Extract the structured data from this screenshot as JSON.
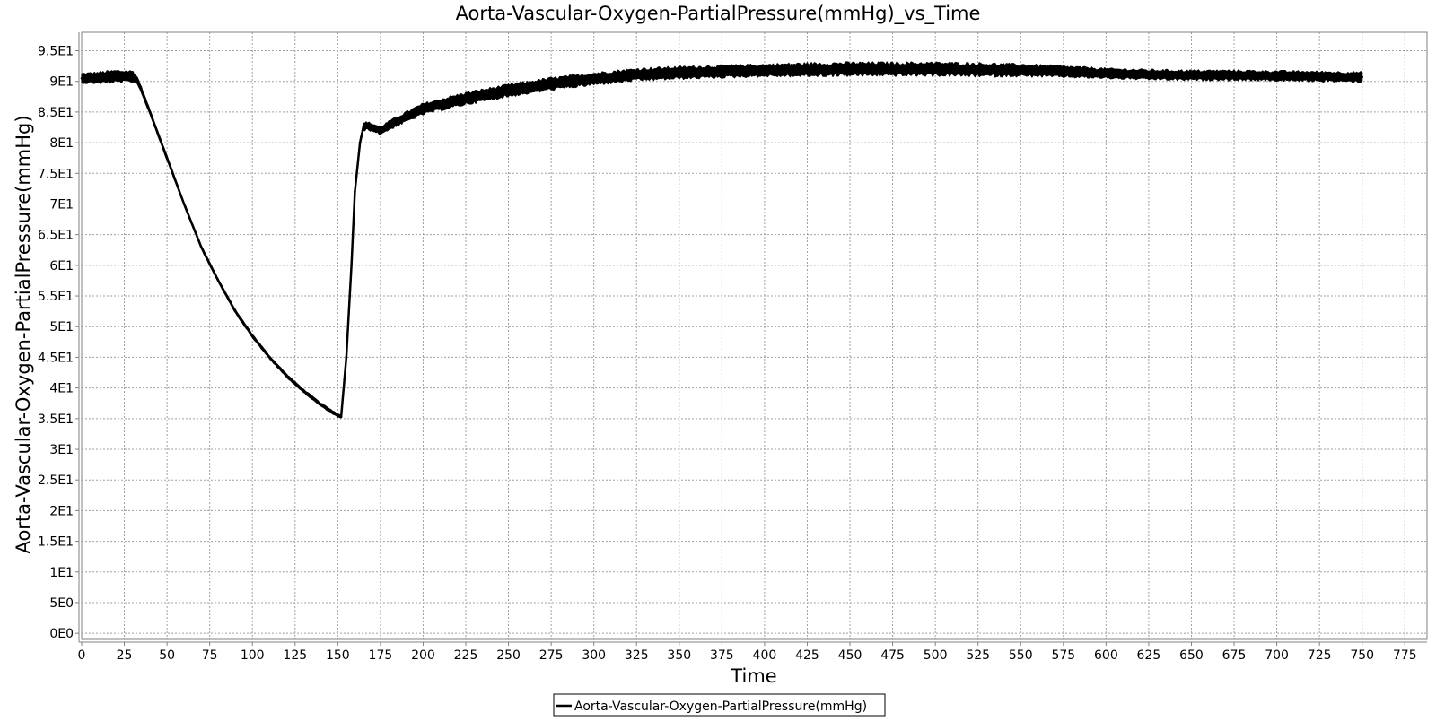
{
  "chart_data": {
    "type": "line",
    "title": "Aorta-Vascular-Oxygen-PartialPressure(mmHg)_vs_Time",
    "xlabel": "Time",
    "ylabel": "Aorta-Vascular-Oxygen-PartialPressure(mmHg)",
    "xlim": [
      0,
      788
    ],
    "ylim": [
      -1,
      98
    ],
    "grid": true,
    "legend_position": "bottom-center",
    "x_ticks": [
      0,
      25,
      50,
      75,
      100,
      125,
      150,
      175,
      200,
      225,
      250,
      275,
      300,
      325,
      350,
      375,
      400,
      425,
      450,
      475,
      500,
      525,
      550,
      575,
      600,
      625,
      650,
      675,
      700,
      725,
      750,
      775
    ],
    "x_tick_labels": [
      "0",
      "25",
      "50",
      "75",
      "100",
      "125",
      "150",
      "175",
      "200",
      "225",
      "250",
      "275",
      "300",
      "325",
      "350",
      "375",
      "400",
      "425",
      "450",
      "475",
      "500",
      "525",
      "550",
      "575",
      "600",
      "625",
      "650",
      "675",
      "700",
      "725",
      "750",
      "775"
    ],
    "y_ticks": [
      0,
      5,
      10,
      15,
      20,
      25,
      30,
      35,
      40,
      45,
      50,
      55,
      60,
      65,
      70,
      75,
      80,
      85,
      90,
      95
    ],
    "y_tick_labels": [
      "0E0",
      "5E0",
      "1E1",
      "1.5E1",
      "2E1",
      "2.5E1",
      "3E1",
      "3.5E1",
      "4E1",
      "4.5E1",
      "5E1",
      "5.5E1",
      "6E1",
      "6.5E1",
      "7E1",
      "7.5E1",
      "8E1",
      "8.5E1",
      "9E1",
      "9.5E1"
    ],
    "series": [
      {
        "name": "Aorta-Vascular-Oxygen-PartialPressure(mmHg)",
        "color": "#000000",
        "x": [
          0,
          10,
          20,
          30,
          33,
          40,
          50,
          60,
          70,
          80,
          90,
          100,
          110,
          120,
          130,
          140,
          150,
          152,
          155,
          158,
          160,
          163,
          165,
          167,
          170,
          175,
          180,
          190,
          200,
          225,
          250,
          275,
          300,
          325,
          350,
          375,
          400,
          425,
          450,
          475,
          500,
          525,
          550,
          575,
          600,
          625,
          650,
          675,
          700,
          725,
          750
        ],
        "y": [
          90.5,
          90.6,
          90.8,
          90.8,
          90,
          85,
          77.5,
          70,
          63,
          57.5,
          52.5,
          48.5,
          45,
          42,
          39.5,
          37.3,
          35.5,
          35.3,
          45,
          60,
          72,
          80,
          82.5,
          82.8,
          82.5,
          82,
          82.8,
          84.2,
          85.5,
          87.2,
          88.5,
          89.6,
          90.4,
          91.1,
          91.4,
          91.6,
          91.8,
          91.9,
          92,
          92,
          92,
          91.9,
          91.8,
          91.6,
          91.3,
          91.1,
          91,
          91,
          90.9,
          90.8,
          90.7
        ],
        "band_halfwidth": [
          0.9,
          1,
          1.1,
          1,
          0.6,
          0.4,
          0.4,
          0.3,
          0.3,
          0.3,
          0.3,
          0.3,
          0.3,
          0.3,
          0.3,
          0.3,
          0.3,
          0.3,
          0.3,
          0.4,
          0.5,
          0.6,
          0.7,
          0.7,
          0.7,
          0.7,
          0.8,
          0.9,
          1,
          1.1,
          1.1,
          1.1,
          1.1,
          1.1,
          1.1,
          1.1,
          1.1,
          1.2,
          1.2,
          1.2,
          1.2,
          1.2,
          1.1,
          1,
          0.9,
          0.9,
          0.9,
          0.9,
          0.9,
          0.9,
          0.9
        ]
      }
    ]
  }
}
